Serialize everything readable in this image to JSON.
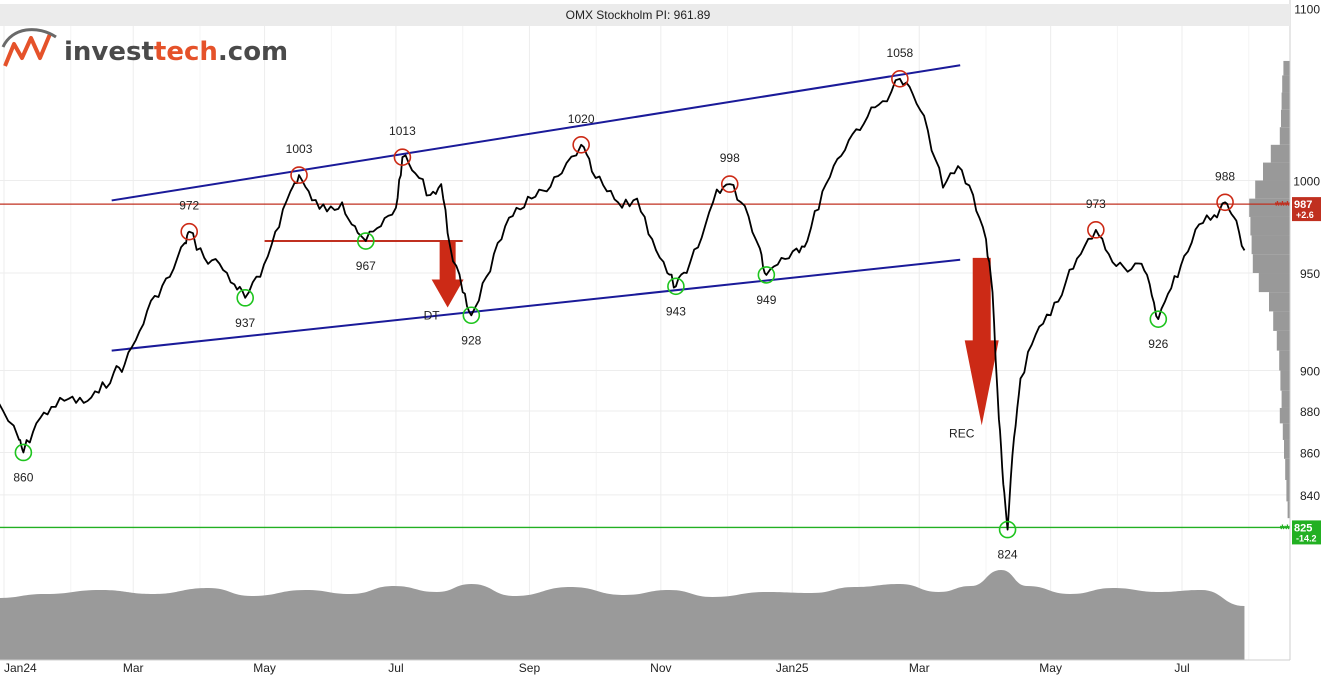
{
  "chart_data": {
    "type": "line",
    "title": "OMX Stockholm PI: 961.89",
    "logo": {
      "name": "investtech.com",
      "part1": "invest",
      "part2": "tech",
      "part3": ".com"
    },
    "y_axis": {
      "scale": "log",
      "ticks": [
        "1100",
        "1000",
        "950",
        "900",
        "880",
        "860",
        "840"
      ],
      "tick_values": [
        1100,
        1000,
        950,
        900,
        880,
        860,
        840
      ]
    },
    "x_axis": {
      "labels": [
        "Jan24",
        "Mar",
        "May",
        "Jul",
        "Sep",
        "Nov",
        "Jan25",
        "Mar",
        "May",
        "Jul"
      ],
      "dates": [
        "2024-01-01",
        "2024-03-01",
        "2024-05-01",
        "2024-07-01",
        "2024-09-01",
        "2024-11-01",
        "2025-01-01",
        "2025-03-01",
        "2025-05-01",
        "2025-07-01"
      ]
    },
    "series": [
      {
        "color": "#000000",
        "points": [
          [
            "2023-12-29",
            885
          ],
          [
            "2024-01-08",
            866
          ],
          [
            "2024-01-10",
            860
          ],
          [
            "2024-01-16",
            874
          ],
          [
            "2024-01-23",
            882
          ],
          [
            "2024-01-31",
            886
          ],
          [
            "2024-02-07",
            884
          ],
          [
            "2024-02-14",
            889
          ],
          [
            "2024-02-21",
            899
          ],
          [
            "2024-02-26",
            903
          ],
          [
            "2024-03-04",
            920
          ],
          [
            "2024-03-11",
            938
          ],
          [
            "2024-03-18",
            948
          ],
          [
            "2024-03-25",
            966
          ],
          [
            "2024-03-27",
            972
          ],
          [
            "2024-04-03",
            958
          ],
          [
            "2024-04-10",
            955
          ],
          [
            "2024-04-17",
            944
          ],
          [
            "2024-04-22",
            937
          ],
          [
            "2024-04-29",
            948
          ],
          [
            "2024-05-06",
            972
          ],
          [
            "2024-05-13",
            994
          ],
          [
            "2024-05-17",
            1003
          ],
          [
            "2024-05-23",
            989
          ],
          [
            "2024-05-30",
            983
          ],
          [
            "2024-06-06",
            988
          ],
          [
            "2024-06-12",
            975
          ],
          [
            "2024-06-17",
            967
          ],
          [
            "2024-06-24",
            975
          ],
          [
            "2024-07-01",
            985
          ],
          [
            "2024-07-04",
            1013
          ],
          [
            "2024-07-10",
            1004
          ],
          [
            "2024-07-17",
            992
          ],
          [
            "2024-07-22",
            998
          ],
          [
            "2024-07-26",
            965
          ],
          [
            "2024-08-01",
            940
          ],
          [
            "2024-08-05",
            928
          ],
          [
            "2024-08-12",
            948
          ],
          [
            "2024-08-19",
            968
          ],
          [
            "2024-08-26",
            985
          ],
          [
            "2024-09-02",
            990
          ],
          [
            "2024-09-09",
            994
          ],
          [
            "2024-09-16",
            1004
          ],
          [
            "2024-09-25",
            1020
          ],
          [
            "2024-09-30",
            1005
          ],
          [
            "2024-10-07",
            994
          ],
          [
            "2024-10-14",
            985
          ],
          [
            "2024-10-21",
            990
          ],
          [
            "2024-10-28",
            968
          ],
          [
            "2024-11-04",
            950
          ],
          [
            "2024-11-08",
            943
          ],
          [
            "2024-11-13",
            950
          ],
          [
            "2024-11-20",
            969
          ],
          [
            "2024-11-27",
            995
          ],
          [
            "2024-12-03",
            998
          ],
          [
            "2024-12-10",
            986
          ],
          [
            "2024-12-17",
            963
          ],
          [
            "2024-12-20",
            949
          ],
          [
            "2024-12-27",
            958
          ],
          [
            "2025-01-03",
            963
          ],
          [
            "2025-01-08",
            967
          ],
          [
            "2025-01-15",
            994
          ],
          [
            "2025-01-22",
            1012
          ],
          [
            "2025-01-29",
            1026
          ],
          [
            "2025-02-05",
            1036
          ],
          [
            "2025-02-12",
            1045
          ],
          [
            "2025-02-20",
            1058
          ],
          [
            "2025-02-26",
            1049
          ],
          [
            "2025-03-05",
            1028
          ],
          [
            "2025-03-12",
            996
          ],
          [
            "2025-03-19",
            1008
          ],
          [
            "2025-03-26",
            992
          ],
          [
            "2025-04-01",
            968
          ],
          [
            "2025-04-04",
            940
          ],
          [
            "2025-04-07",
            876
          ],
          [
            "2025-04-09",
            845
          ],
          [
            "2025-04-11",
            824
          ],
          [
            "2025-04-14",
            867
          ],
          [
            "2025-04-17",
            896
          ],
          [
            "2025-04-24",
            918
          ],
          [
            "2025-05-01",
            928
          ],
          [
            "2025-05-08",
            945
          ],
          [
            "2025-05-15",
            960
          ],
          [
            "2025-05-22",
            973
          ],
          [
            "2025-05-28",
            960
          ],
          [
            "2025-06-04",
            953
          ],
          [
            "2025-06-11",
            955
          ],
          [
            "2025-06-16",
            944
          ],
          [
            "2025-06-20",
            926
          ],
          [
            "2025-06-26",
            942
          ],
          [
            "2025-07-02",
            959
          ],
          [
            "2025-07-09",
            976
          ],
          [
            "2025-07-16",
            981
          ],
          [
            "2025-07-21",
            988
          ],
          [
            "2025-07-25",
            980
          ],
          [
            "2025-07-30",
            962
          ]
        ]
      }
    ],
    "extremes": [
      {
        "label": "860",
        "kind": "low",
        "date": "2024-01-10",
        "value": 860
      },
      {
        "label": "972",
        "kind": "high",
        "date": "2024-03-27",
        "value": 972
      },
      {
        "label": "937",
        "kind": "low",
        "date": "2024-04-22",
        "value": 937
      },
      {
        "label": "1003",
        "kind": "high",
        "date": "2024-05-17",
        "value": 1003
      },
      {
        "label": "967",
        "kind": "low",
        "date": "2024-06-17",
        "value": 967
      },
      {
        "label": "1013",
        "kind": "high",
        "date": "2024-07-04",
        "value": 1013
      },
      {
        "label": "928",
        "kind": "low",
        "date": "2024-08-05",
        "value": 928
      },
      {
        "label": "1020",
        "kind": "high",
        "date": "2024-09-25",
        "value": 1020
      },
      {
        "label": "943",
        "kind": "low",
        "date": "2024-11-08",
        "value": 943
      },
      {
        "label": "998",
        "kind": "high",
        "date": "2024-12-03",
        "value": 998
      },
      {
        "label": "949",
        "kind": "low",
        "date": "2024-12-20",
        "value": 949
      },
      {
        "label": "1058",
        "kind": "high",
        "date": "2025-02-20",
        "value": 1058
      },
      {
        "label": "824",
        "kind": "low",
        "date": "2025-04-11",
        "value": 824
      },
      {
        "label": "973",
        "kind": "high",
        "date": "2025-05-22",
        "value": 973
      },
      {
        "label": "926",
        "kind": "low",
        "date": "2025-06-20",
        "value": 926
      },
      {
        "label": "988",
        "kind": "high",
        "date": "2025-07-21",
        "value": 988
      }
    ],
    "channel": {
      "color": "#1a1a99",
      "upper": [
        [
          "2024-02-20",
          989
        ],
        [
          "2025-03-20",
          1066
        ]
      ],
      "lower": [
        [
          "2024-02-20",
          910
        ],
        [
          "2025-03-20",
          957
        ]
      ]
    },
    "horizontal_lines": [
      {
        "value": 987,
        "color": "#c03020",
        "price_tag": "987",
        "change_tag": "+2.6",
        "stars": "***"
      },
      {
        "value": 825,
        "color": "#22b022",
        "price_tag": "825",
        "change_tag": "-14.2",
        "stars": "**"
      }
    ],
    "neckline": {
      "color": "#c03020",
      "from": "2024-05-01",
      "to": "2024-08-01",
      "value": 967
    },
    "arrows": [
      {
        "label": "DT",
        "color": "#cc2a16",
        "date": "2024-07-25",
        "top": 967,
        "bottom": 932
      },
      {
        "label": "REC",
        "color": "#cc2a16",
        "date": "2025-03-30",
        "top": 958,
        "bottom": 873
      }
    ],
    "volume": {
      "color": "#9a9a9a",
      "points": [
        [
          "2023-12-29",
          0.62
        ],
        [
          "2024-01-20",
          0.66
        ],
        [
          "2024-02-15",
          0.7
        ],
        [
          "2024-03-10",
          0.66
        ],
        [
          "2024-04-05",
          0.72
        ],
        [
          "2024-04-25",
          0.64
        ],
        [
          "2024-05-20",
          0.7
        ],
        [
          "2024-06-10",
          0.66
        ],
        [
          "2024-06-30",
          0.74
        ],
        [
          "2024-07-20",
          0.68
        ],
        [
          "2024-08-05",
          0.76
        ],
        [
          "2024-08-25",
          0.64
        ],
        [
          "2024-09-20",
          0.73
        ],
        [
          "2024-10-15",
          0.65
        ],
        [
          "2024-11-05",
          0.7
        ],
        [
          "2024-11-25",
          0.63
        ],
        [
          "2024-12-20",
          0.68
        ],
        [
          "2025-01-10",
          0.67
        ],
        [
          "2025-01-30",
          0.73
        ],
        [
          "2025-02-20",
          0.76
        ],
        [
          "2025-03-10",
          0.68
        ],
        [
          "2025-03-25",
          0.74
        ],
        [
          "2025-04-08",
          0.9
        ],
        [
          "2025-04-20",
          0.74
        ],
        [
          "2025-05-10",
          0.66
        ],
        [
          "2025-05-30",
          0.72
        ],
        [
          "2025-06-20",
          0.68
        ],
        [
          "2025-07-10",
          0.7
        ],
        [
          "2025-07-30",
          0.54
        ]
      ]
    },
    "volume_profile": {
      "color": "#999999",
      "bins": [
        [
          1065,
          0.11
        ],
        [
          1055,
          0.13
        ],
        [
          1045,
          0.14
        ],
        [
          1035,
          0.15
        ],
        [
          1025,
          0.17
        ],
        [
          1015,
          0.32
        ],
        [
          1005,
          0.45
        ],
        [
          995,
          0.58
        ],
        [
          985,
          0.68
        ],
        [
          975,
          0.66
        ],
        [
          965,
          0.64
        ],
        [
          955,
          0.62
        ],
        [
          945,
          0.52
        ],
        [
          935,
          0.35
        ],
        [
          925,
          0.28
        ],
        [
          915,
          0.22
        ],
        [
          905,
          0.18
        ],
        [
          895,
          0.16
        ],
        [
          885,
          0.14
        ],
        [
          878,
          0.17
        ],
        [
          870,
          0.12
        ],
        [
          862,
          0.1
        ],
        [
          852,
          0.08
        ],
        [
          842,
          0.06
        ],
        [
          832,
          0.04
        ]
      ]
    }
  }
}
